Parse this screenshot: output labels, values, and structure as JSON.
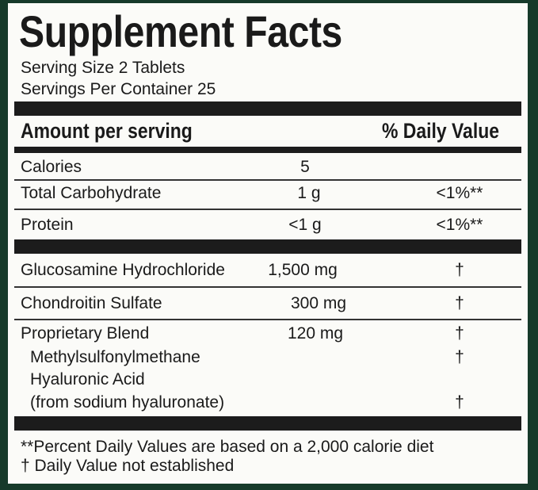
{
  "header": {
    "title": "Supplement Facts",
    "serving_size": "Serving Size 2 Tablets",
    "servings_per_container": "Servings Per Container 25"
  },
  "table": {
    "columns": [
      "Amount per serving",
      "% Daily Value"
    ],
    "rows": [
      [
        "Calories",
        "5"
      ],
      [
        "Total Carbohydrate",
        "1 g",
        "<1%**"
      ],
      [
        "Protein",
        "<1 g",
        "<1%**"
      ],
      [
        "Glucosamine Hydrochloride",
        "1,500 mg",
        "†"
      ],
      [
        "Chondroitin Sulfate",
        "300 mg",
        "†"
      ],
      [
        "Proprietary Blend",
        "120 mg",
        "†"
      ]
    ],
    "blend_items": [
      [
        "Methylsulfonylmethane",
        "†"
      ],
      [
        "Hyaluronic Acid"
      ],
      [
        "(from sodium hyaluronate)",
        "†"
      ]
    ]
  },
  "footnotes": [
    "**Percent Daily Values are based on a 2,000 calorie diet",
    "† Daily Value not established"
  ]
}
